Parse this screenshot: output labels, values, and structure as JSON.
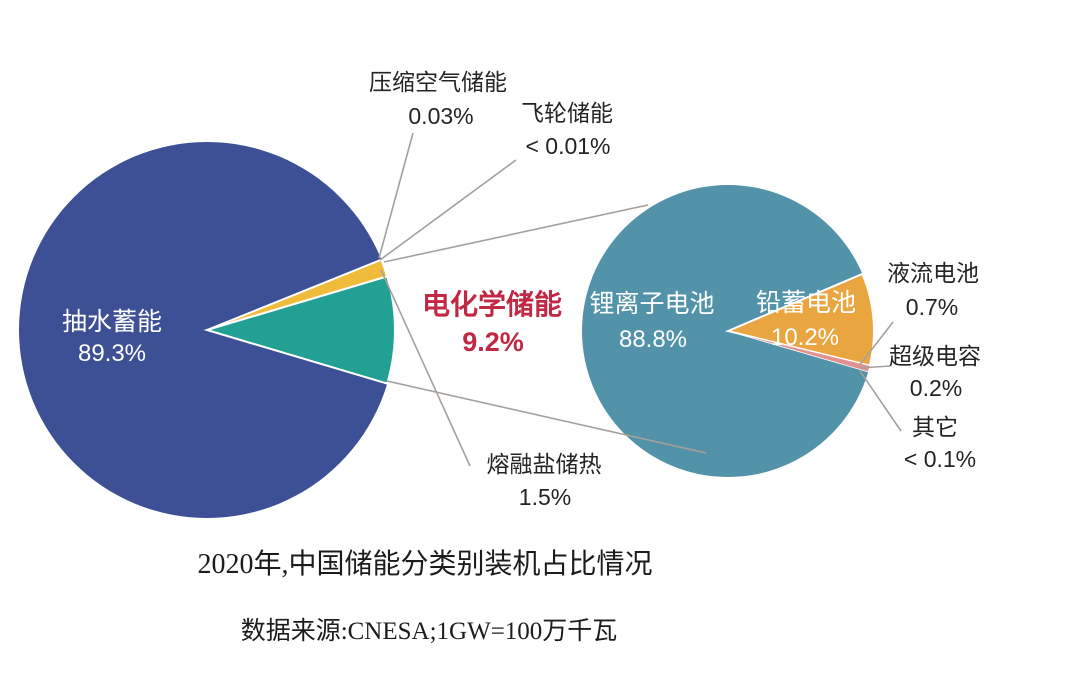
{
  "title": "2020年,中国储能分类别装机占比情况",
  "source_note": "数据来源:CNESA;1GW=100万千瓦",
  "colors": {
    "background": "#ffffff",
    "leader_line": "#a6a09b",
    "label_text": "#242424",
    "highlight_text": "#c02844",
    "in_pie_text": "#ffffff"
  },
  "chart_data": [
    {
      "type": "pie",
      "name": "china-total-storage-2020",
      "legend_position": "none",
      "slices": [
        {
          "id": "pumped-hydro",
          "label": "抽水蓄能",
          "value": 89.3,
          "value_label": "89.3%",
          "color": "#3d5096"
        },
        {
          "id": "compressed-air",
          "label": "压缩空气储能",
          "value": 0.03,
          "value_label": "0.03%",
          "color": "#3d5096"
        },
        {
          "id": "flywheel",
          "label": "飞轮储能",
          "value": 0.01,
          "value_label": "< 0.01%",
          "color": "#3d5096"
        },
        {
          "id": "molten-salt",
          "label": "熔融盐储热",
          "value": 1.5,
          "value_label": "1.5%",
          "color": "#eebb3b"
        },
        {
          "id": "electrochemical",
          "label": "电化学储能",
          "value": 9.2,
          "value_label": "9.2%",
          "color": "#23a094"
        }
      ]
    },
    {
      "type": "pie",
      "name": "electrochemical-storage-breakdown",
      "legend_position": "none",
      "slices": [
        {
          "id": "lithium-ion",
          "label": "锂离子电池",
          "value": 88.8,
          "value_label": "88.8%",
          "color": "#5293a9"
        },
        {
          "id": "lead-acid",
          "label": "铅蓄电池",
          "value": 10.2,
          "value_label": "10.2%",
          "color": "#e9a640"
        },
        {
          "id": "flow-battery",
          "label": "液流电池",
          "value": 0.7,
          "value_label": "0.7%",
          "color": "#e29090"
        },
        {
          "id": "supercapacitor",
          "label": "超级电容",
          "value": 0.2,
          "value_label": "0.2%",
          "color": "#5293a9"
        },
        {
          "id": "others",
          "label": "其它",
          "value": 0.1,
          "value_label": "< 0.1%",
          "color": "#5293a9"
        }
      ]
    }
  ]
}
